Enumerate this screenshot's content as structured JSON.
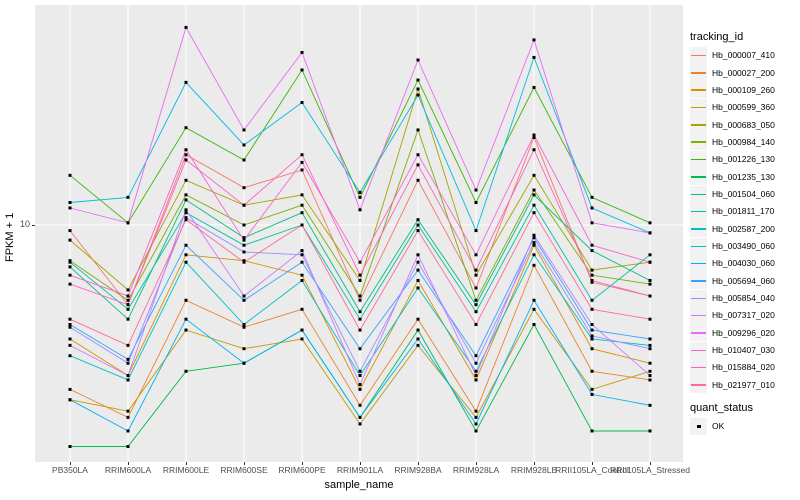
{
  "figure": {
    "y_axis": {
      "title": "FPKM + 1",
      "tick_label": "10"
    },
    "x_axis": {
      "title": "sample_name"
    },
    "legend": {
      "tracking_title": "tracking_id",
      "quant_title": "quant_status",
      "quant_ok_label": "OK"
    },
    "colors": {
      "panel_background": "#EBEBEB",
      "gridline": "#FFFFFF",
      "tick_text": "#4D4D4D",
      "point": "#000000",
      "legend_key_background": "#F2F2F2"
    }
  },
  "chart_data": {
    "type": "line",
    "title": "",
    "xlabel": "sample_name",
    "ylabel": "FPKM + 1",
    "y_scale": "log10",
    "y_ticks": [
      10
    ],
    "ylim": [
      1.1,
      75
    ],
    "grid": true,
    "legend_position": "right",
    "point_marker": "black-square",
    "quant_status": "OK",
    "categories": [
      "PB350LA",
      "RRIM600LA",
      "RRIM600LE",
      "RRIM600SE",
      "RRIM600PE",
      "RRIM901LA",
      "RRIM928BA",
      "RRIM928LA",
      "RRIM928LB",
      "RRII105LA_Control",
      "RRII105LA_Stressed"
    ],
    "series": [
      {
        "name": "Hb_000007_410",
        "color": "#F8766D",
        "values": [
          9.5,
          4.8,
          19.1,
          14.1,
          16.6,
          5.0,
          15.1,
          5.6,
          22.4,
          5.9,
          5.2
        ]
      },
      {
        "name": "Hb_000027_200",
        "color": "#EA8331",
        "values": [
          2.2,
          1.7,
          5.0,
          3.9,
          4.6,
          1.9,
          4.2,
          1.8,
          6.9,
          2.6,
          2.4
        ]
      },
      {
        "name": "Hb_000109_260",
        "color": "#D89000",
        "values": [
          3.5,
          2.5,
          7.6,
          7.2,
          6.3,
          2.2,
          6.0,
          2.4,
          8.3,
          3.2,
          2.8
        ]
      },
      {
        "name": "Hb_000599_360",
        "color": "#C09B00",
        "values": [
          2.0,
          1.8,
          3.8,
          3.2,
          3.5,
          1.6,
          3.3,
          1.7,
          4.6,
          2.2,
          2.6
        ]
      },
      {
        "name": "Hb_000683_050",
        "color": "#A3A500",
        "values": [
          8.7,
          5.5,
          15.1,
          12.0,
          13.2,
          6.0,
          35.0,
          6.3,
          15.8,
          6.6,
          7.1
        ]
      },
      {
        "name": "Hb_000984_140",
        "color": "#7CAE00",
        "values": [
          7.2,
          5.0,
          13.2,
          10.0,
          12.0,
          5.2,
          24.0,
          5.0,
          13.8,
          6.3,
          5.8
        ]
      },
      {
        "name": "Hb_001226_130",
        "color": "#39B600",
        "values": [
          15.8,
          10.2,
          24.5,
          18.2,
          41.7,
          12.9,
          38.0,
          12.3,
          35.5,
          12.9,
          10.2
        ]
      },
      {
        "name": "Hb_001235_130",
        "color": "#00BB4E",
        "values": [
          1.3,
          1.3,
          2.6,
          2.8,
          3.8,
          1.7,
          3.8,
          1.5,
          4.0,
          1.5,
          1.5
        ]
      },
      {
        "name": "Hb_001504_060",
        "color": "#00BF7D",
        "values": [
          6.8,
          4.2,
          12.6,
          8.9,
          11.2,
          4.5,
          10.5,
          4.8,
          13.2,
          7.9,
          6.0
        ]
      },
      {
        "name": "Hb_001811_170",
        "color": "#00C1A3",
        "values": [
          7.1,
          4.6,
          11.2,
          8.3,
          10.0,
          4.2,
          10.0,
          4.5,
          12.0,
          5.0,
          7.6
        ]
      },
      {
        "name": "Hb_002587_200",
        "color": "#00BFC4",
        "values": [
          3.0,
          2.4,
          7.1,
          4.0,
          6.0,
          2.5,
          5.6,
          2.6,
          7.6,
          3.5,
          3.3
        ]
      },
      {
        "name": "Hb_003490_060",
        "color": "#00BAE0",
        "values": [
          12.3,
          12.9,
          37.2,
          20.9,
          30.9,
          13.5,
          33.1,
          9.5,
          46.8,
          11.7,
          9.3
        ]
      },
      {
        "name": "Hb_004030_060",
        "color": "#00B0F6",
        "values": [
          2.0,
          1.5,
          4.2,
          2.8,
          3.8,
          1.7,
          3.5,
          1.6,
          5.0,
          2.1,
          1.9
        ]
      },
      {
        "name": "Hb_005694_060",
        "color": "#35A2FF",
        "values": [
          4.0,
          2.9,
          8.3,
          5.0,
          7.1,
          3.2,
          6.6,
          3.0,
          8.9,
          3.8,
          3.5
        ]
      },
      {
        "name": "Hb_005854_040",
        "color": "#9590FF",
        "values": [
          3.9,
          2.8,
          10.7,
          7.8,
          7.6,
          2.6,
          7.1,
          2.8,
          8.5,
          3.6,
          3.2
        ]
      },
      {
        "name": "Hb_007317_020",
        "color": "#C77CFF",
        "values": [
          3.3,
          2.5,
          11.5,
          5.2,
          7.9,
          2.3,
          7.6,
          2.5,
          9.1,
          4.0,
          2.5
        ]
      },
      {
        "name": "Hb_009296_020",
        "color": "#E76BF3",
        "values": [
          11.7,
          10.2,
          61.7,
          24.0,
          49.0,
          11.5,
          45.7,
          13.8,
          55.0,
          10.2,
          9.3
        ]
      },
      {
        "name": "Hb_010407_030",
        "color": "#FA62DB",
        "values": [
          6.3,
          5.2,
          20.0,
          8.7,
          17.8,
          7.1,
          19.1,
          7.6,
          22.9,
          8.3,
          7.1
        ]
      },
      {
        "name": "Hb_015884_020",
        "color": "#FF62BC",
        "values": [
          5.8,
          4.8,
          18.2,
          12.0,
          19.1,
          6.3,
          17.4,
          6.6,
          20.0,
          6.0,
          5.2
        ]
      },
      {
        "name": "Hb_021977_010",
        "color": "#FF6A98",
        "values": [
          4.2,
          3.3,
          10.5,
          7.1,
          10.0,
          3.8,
          9.5,
          4.0,
          11.2,
          4.6,
          4.2
        ]
      }
    ]
  }
}
